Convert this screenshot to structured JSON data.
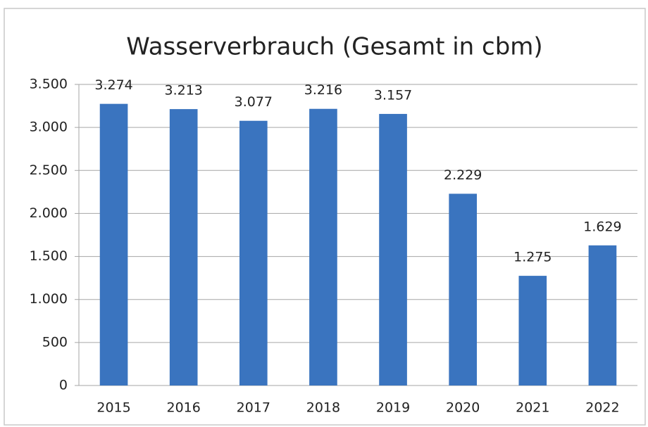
{
  "chart_data": {
    "type": "bar",
    "title": "Wasserverbrauch (Gesamt in cbm)",
    "categories": [
      "2015",
      "2016",
      "2017",
      "2018",
      "2019",
      "2020",
      "2021",
      "2022"
    ],
    "values": [
      3274,
      3213,
      3077,
      3216,
      3157,
      2229,
      1275,
      1629
    ],
    "value_labels": [
      "3.274",
      "3.213",
      "3.077",
      "3.216",
      "3.157",
      "2.229",
      "1.275",
      "1.629"
    ],
    "color": "#3a74bf",
    "ylim": [
      0,
      3500
    ],
    "yticks": [
      0,
      500,
      {
        "value": 1000,
        "label": "1.000"
      },
      {
        "value": 1500,
        "label": "1.500"
      },
      {
        "value": 2000,
        "label": "2.000"
      },
      {
        "value": 2500,
        "label": "2.500"
      },
      {
        "value": 3000,
        "label": "3.000"
      },
      {
        "value": 3500,
        "label": "3.500"
      }
    ],
    "grid": true
  }
}
